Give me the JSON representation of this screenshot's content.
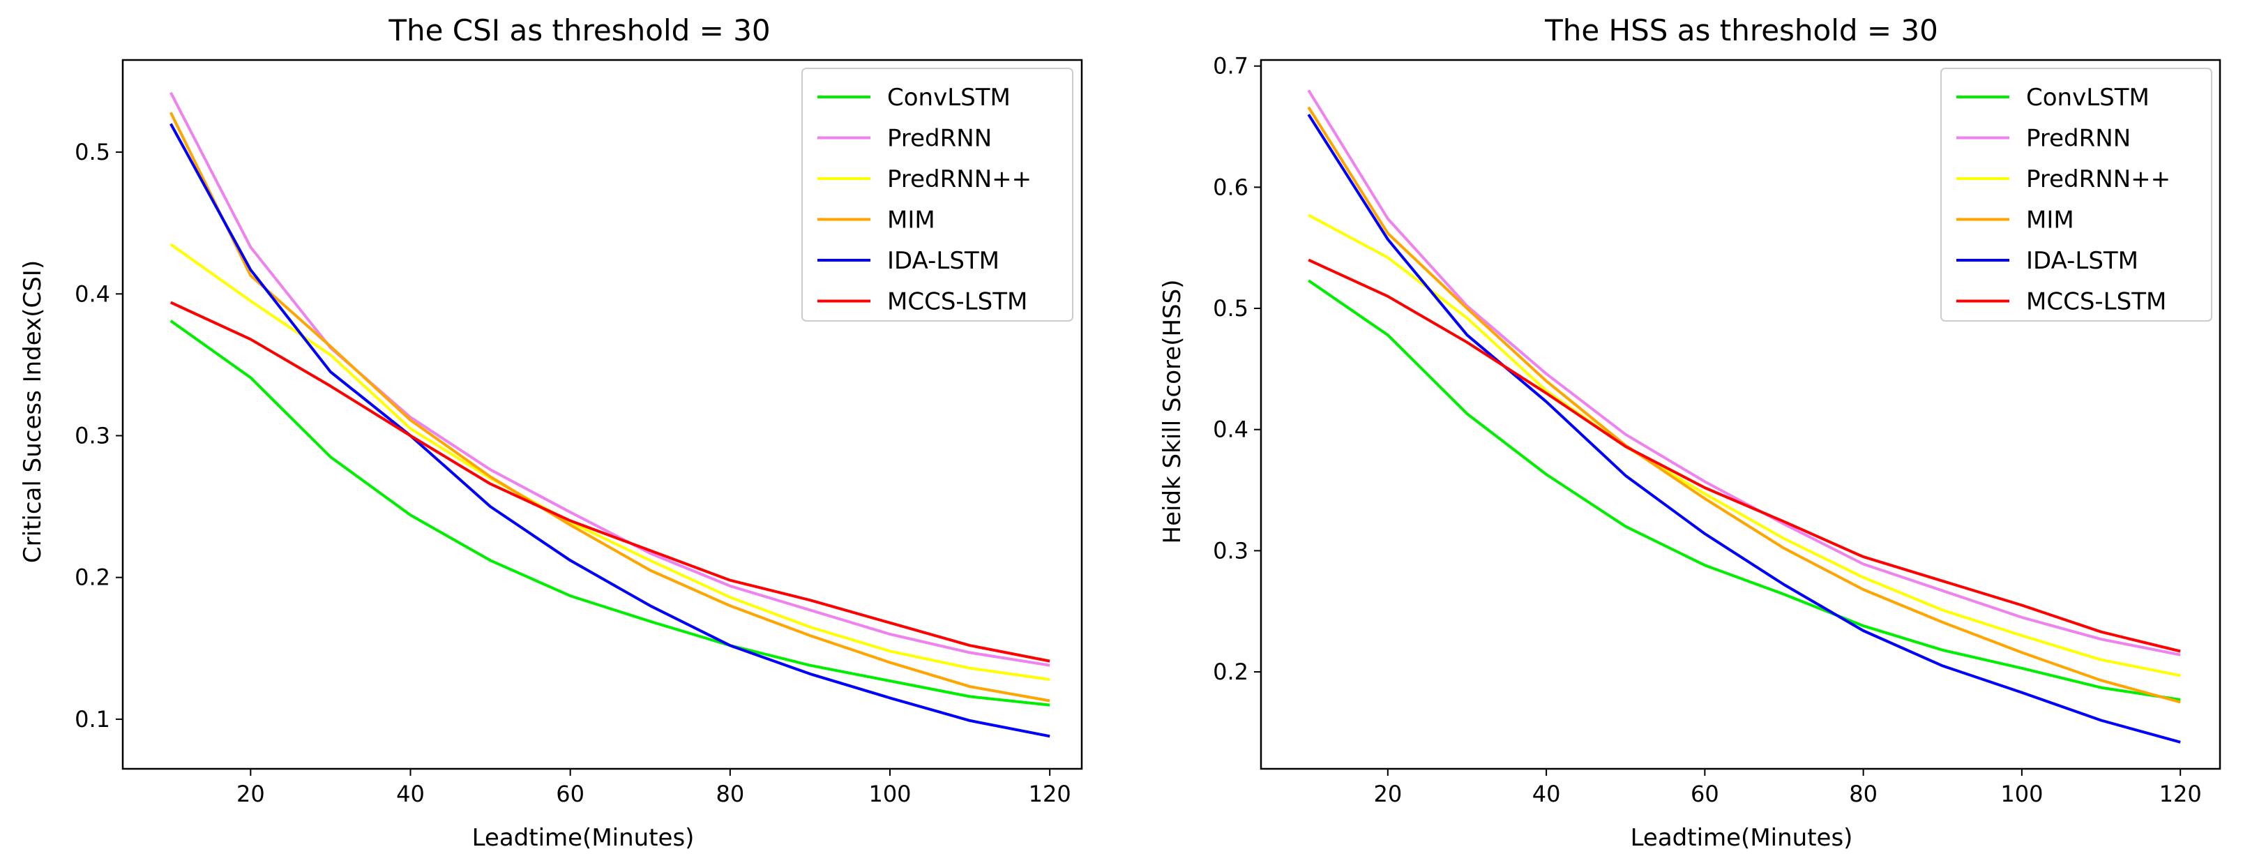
{
  "figure": {
    "background": "#ffffff"
  },
  "chart_data": [
    {
      "type": "line",
      "title": "The CSI as threshold = 30",
      "xlabel": "Leadtime(Minutes)",
      "ylabel": "Critical Sucess Index(CSI)",
      "xlim": [
        4,
        124
      ],
      "ylim": [
        0.065,
        0.565
      ],
      "xticks": [
        20,
        40,
        60,
        80,
        100,
        120
      ],
      "yticks": [
        0.1,
        0.2,
        0.3,
        0.4,
        0.5
      ],
      "legend": "top-right",
      "grid": false,
      "x": [
        10,
        20,
        30,
        40,
        50,
        60,
        70,
        80,
        90,
        100,
        110,
        120
      ],
      "series": [
        {
          "name": "ConvLSTM",
          "color": "#00ee00",
          "values": [
            0.381,
            0.341,
            0.285,
            0.244,
            0.212,
            0.187,
            0.169,
            0.152,
            0.138,
            0.127,
            0.116,
            0.11
          ]
        },
        {
          "name": "PredRNN",
          "color": "#ee82ee",
          "values": [
            0.542,
            0.433,
            0.362,
            0.313,
            0.276,
            0.246,
            0.217,
            0.194,
            0.177,
            0.16,
            0.147,
            0.138
          ]
        },
        {
          "name": "PredRNN++",
          "color": "#ffff00",
          "values": [
            0.435,
            0.395,
            0.357,
            0.305,
            0.27,
            0.239,
            0.212,
            0.186,
            0.165,
            0.148,
            0.136,
            0.128
          ]
        },
        {
          "name": "MIM",
          "color": "#ffa500",
          "values": [
            0.528,
            0.413,
            0.363,
            0.311,
            0.271,
            0.237,
            0.205,
            0.18,
            0.159,
            0.14,
            0.123,
            0.113
          ]
        },
        {
          "name": "IDA-LSTM",
          "color": "#0000ff",
          "values": [
            0.52,
            0.417,
            0.345,
            0.3,
            0.25,
            0.212,
            0.18,
            0.152,
            0.132,
            0.115,
            0.099,
            0.088
          ]
        },
        {
          "name": "MCCS-LSTM",
          "color": "#ff0000",
          "values": [
            0.394,
            0.368,
            0.335,
            0.3,
            0.266,
            0.24,
            0.219,
            0.198,
            0.184,
            0.168,
            0.152,
            0.141
          ]
        }
      ]
    },
    {
      "type": "line",
      "title": "The HSS as threshold = 30",
      "xlabel": "Leadtime(Minutes)",
      "ylabel": "Heidk Skill Score(HSS)",
      "xlim": [
        4,
        125
      ],
      "ylim": [
        0.12,
        0.705
      ],
      "xticks": [
        20,
        40,
        60,
        80,
        100,
        120
      ],
      "yticks": [
        0.2,
        0.3,
        0.4,
        0.5,
        0.6,
        0.7
      ],
      "legend": "top-right",
      "grid": false,
      "x": [
        10,
        20,
        30,
        40,
        50,
        60,
        70,
        80,
        90,
        100,
        110,
        120
      ],
      "series": [
        {
          "name": "ConvLSTM",
          "color": "#00ee00",
          "values": [
            0.523,
            0.478,
            0.413,
            0.363,
            0.32,
            0.288,
            0.264,
            0.238,
            0.218,
            0.203,
            0.187,
            0.177
          ]
        },
        {
          "name": "PredRNN",
          "color": "#ee82ee",
          "values": [
            0.68,
            0.574,
            0.502,
            0.446,
            0.396,
            0.357,
            0.322,
            0.289,
            0.267,
            0.245,
            0.227,
            0.214
          ]
        },
        {
          "name": "PredRNN++",
          "color": "#ffff00",
          "values": [
            0.577,
            0.542,
            0.492,
            0.432,
            0.386,
            0.347,
            0.31,
            0.278,
            0.251,
            0.23,
            0.21,
            0.197
          ]
        },
        {
          "name": "MIM",
          "color": "#ffa500",
          "values": [
            0.666,
            0.562,
            0.5,
            0.44,
            0.387,
            0.343,
            0.302,
            0.268,
            0.241,
            0.216,
            0.193,
            0.175
          ]
        },
        {
          "name": "IDA-LSTM",
          "color": "#0000ff",
          "values": [
            0.66,
            0.557,
            0.478,
            0.423,
            0.362,
            0.314,
            0.272,
            0.234,
            0.205,
            0.183,
            0.16,
            0.142
          ]
        },
        {
          "name": "MCCS-LSTM",
          "color": "#ff0000",
          "values": [
            0.54,
            0.51,
            0.472,
            0.43,
            0.386,
            0.352,
            0.324,
            0.295,
            0.275,
            0.255,
            0.233,
            0.217
          ]
        }
      ]
    }
  ]
}
